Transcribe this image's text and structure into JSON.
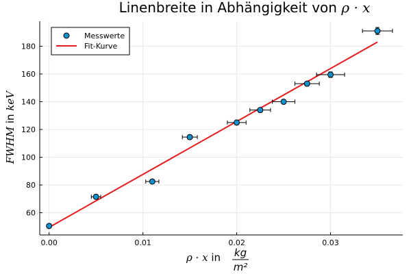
{
  "chart_data": {
    "type": "scatter",
    "title": {
      "text": "Linenbreite in Abhängigkeit von ",
      "math": "ρ · x"
    },
    "xlabel": {
      "math": "ρ · x",
      "text": " in ",
      "frac_num": "kg",
      "frac_den": "m²"
    },
    "ylabel": {
      "math": "FWHM",
      "text": " in ",
      "unit": "keV"
    },
    "xlim": [
      -0.001,
      0.0377
    ],
    "ylim": [
      44,
      198
    ],
    "x_ticks": [
      0.0,
      0.01,
      0.02,
      0.03
    ],
    "x_tick_labels": [
      "0.00",
      "0.01",
      "0.02",
      "0.03"
    ],
    "y_ticks": [
      60,
      80,
      100,
      120,
      140,
      160,
      180
    ],
    "y_tick_labels": [
      "60",
      "80",
      "100",
      "120",
      "140",
      "160",
      "180"
    ],
    "grid": true,
    "legend_position": "top-left",
    "series": [
      {
        "name": "Messwerte",
        "kind": "scatter-errorbars",
        "color": "#0f8fcc",
        "points": [
          {
            "x": 0.0,
            "y": 50.5,
            "xerr": 0.0002,
            "yerr": 1.0
          },
          {
            "x": 0.005,
            "y": 71.5,
            "xerr": 0.0005,
            "yerr": 1.5
          },
          {
            "x": 0.011,
            "y": 82.5,
            "xerr": 0.0007,
            "yerr": 1.5
          },
          {
            "x": 0.015,
            "y": 114.5,
            "xerr": 0.0008,
            "yerr": 1.5
          },
          {
            "x": 0.02,
            "y": 125.0,
            "xerr": 0.001,
            "yerr": 1.5
          },
          {
            "x": 0.0225,
            "y": 134.0,
            "xerr": 0.0011,
            "yerr": 1.5
          },
          {
            "x": 0.025,
            "y": 140.0,
            "xerr": 0.0012,
            "yerr": 1.5
          },
          {
            "x": 0.0275,
            "y": 153.0,
            "xerr": 0.0013,
            "yerr": 1.5
          },
          {
            "x": 0.03,
            "y": 159.5,
            "xerr": 0.0015,
            "yerr": 2.0
          },
          {
            "x": 0.035,
            "y": 191.0,
            "xerr": 0.0016,
            "yerr": 2.5
          }
        ]
      },
      {
        "name": "Fit-Kurve",
        "kind": "line",
        "color": "#e41a1c",
        "x": [
          0.0,
          0.035
        ],
        "y": [
          49.5,
          183.0
        ]
      }
    ],
    "colors": {
      "axis": "#000000",
      "grid": "#e9e9e9",
      "marker_stroke": "#000000",
      "errorbar": "#000000"
    }
  }
}
